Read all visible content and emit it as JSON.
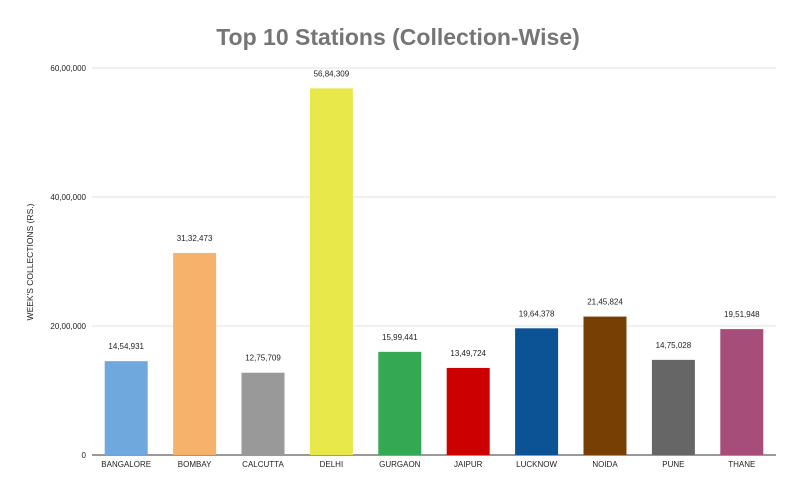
{
  "chart_data": {
    "type": "bar",
    "title": "Top 10 Stations (Collection-Wise)",
    "xlabel": "",
    "ylabel": "WEEK'S COLLECTIONS (RS.)",
    "categories": [
      "BANGALORE",
      "BOMBAY",
      "CALCUTTA",
      "DELHI",
      "GURGAON",
      "JAIPUR",
      "LUCKNOW",
      "NOIDA",
      "PUNE",
      "THANE"
    ],
    "values": [
      1454931,
      3132473,
      1275709,
      5684309,
      1599441,
      1349724,
      1964378,
      2145824,
      1475028,
      1951948
    ],
    "data_labels": [
      "14,54,931",
      "31,32,473",
      "12,75,709",
      "56,84,309",
      "15,99,441",
      "13,49,724",
      "19,64,378",
      "21,45,824",
      "14,75,028",
      "19,51,948"
    ],
    "bar_colors": [
      "#6fa8dc",
      "#f6b26b",
      "#999999",
      "#e8e84a",
      "#34a853",
      "#cc0000",
      "#0b5394",
      "#783f04",
      "#666666",
      "#a64d79"
    ],
    "ylim": [
      0,
      6000000
    ],
    "yticks": [
      0,
      2000000,
      4000000,
      6000000
    ],
    "ytick_labels": [
      "0",
      "20,00,000",
      "40,00,000",
      "60,00,000"
    ],
    "grid": true,
    "legend": "none"
  }
}
